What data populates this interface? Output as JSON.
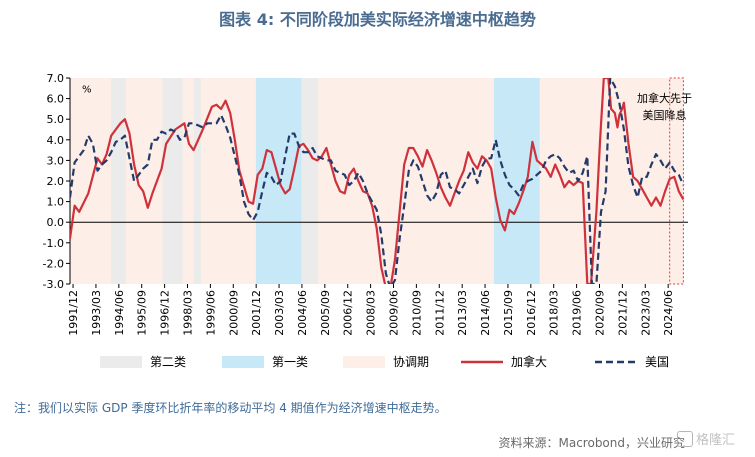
{
  "title": "图表 4:  不同阶段加美实际经济增速中枢趋势",
  "note": "注：我们以实际 GDP 季度环比折年率的移动平均 4 期值作为经济增速中枢走势。",
  "source": "资料来源：Macrobond，兴业研究",
  "watermark": "格隆汇",
  "colors": {
    "title": "#4a6c91",
    "canada": "#d0323c",
    "us": "#243b6a",
    "phase2": "#ebebeb",
    "phase1": "#c7e9f7",
    "coord": "#fdeee8",
    "annotation_border": "#e0403c"
  },
  "chart_data": {
    "type": "line",
    "y_unit_label": "%",
    "ylim": [
      -3.0,
      7.0
    ],
    "yticks": [
      "7.0",
      "6.0",
      "5.0",
      "4.0",
      "3.0",
      "2.0",
      "1.0",
      "0.0",
      "-1.0",
      "-2.0",
      "-3.0"
    ],
    "xlim": [
      1991.75,
      2025.5
    ],
    "xticks": [
      "1991/12",
      "1993/03",
      "1994/06",
      "1995/09",
      "1996/12",
      "1998/03",
      "1999/06",
      "2000/09",
      "2001/12",
      "2003/03",
      "2004/06",
      "2005/09",
      "2006/12",
      "2008/03",
      "2009/06",
      "2010/09",
      "2011/12",
      "2013/03",
      "2014/06",
      "2015/09",
      "2016/12",
      "2018/03",
      "2019/06",
      "2020/09",
      "2021/12",
      "2023/03",
      "2024/06"
    ],
    "legend": [
      {
        "key": "phase2",
        "label": "第二类",
        "kind": "swatch"
      },
      {
        "key": "phase1",
        "label": "第一类",
        "kind": "swatch"
      },
      {
        "key": "coord",
        "label": "协调期",
        "kind": "swatch"
      },
      {
        "key": "canada",
        "label": "加拿大",
        "kind": "line"
      },
      {
        "key": "us",
        "label": "美国",
        "kind": "dash"
      }
    ],
    "annotation": "加拿大先于美国降息",
    "annotation_range": [
      2024.5,
      2025.25
    ],
    "bands": [
      {
        "type": "coord",
        "start": 1991.75,
        "end": 2025.25
      },
      {
        "type": "phase2",
        "start": 1994.0,
        "end": 1994.8
      },
      {
        "type": "phase2",
        "start": 1996.8,
        "end": 1997.9
      },
      {
        "type": "phase2",
        "start": 1998.5,
        "end": 1998.9
      },
      {
        "type": "phase1",
        "start": 2001.9,
        "end": 2004.4
      },
      {
        "type": "phase2",
        "start": 2004.4,
        "end": 2005.3
      },
      {
        "type": "phase1",
        "start": 2014.9,
        "end": 2017.4
      }
    ],
    "series": [
      {
        "name": "加拿大",
        "key": "canada",
        "style": "solid",
        "points": [
          [
            1991.75,
            -0.8
          ],
          [
            1992.0,
            0.8
          ],
          [
            1992.25,
            0.5
          ],
          [
            1992.75,
            1.4
          ],
          [
            1993.25,
            3.1
          ],
          [
            1993.5,
            2.8
          ],
          [
            1993.75,
            3.3
          ],
          [
            1994.0,
            4.2
          ],
          [
            1994.5,
            4.8
          ],
          [
            1994.75,
            5.0
          ],
          [
            1995.0,
            4.3
          ],
          [
            1995.25,
            2.8
          ],
          [
            1995.5,
            1.8
          ],
          [
            1995.75,
            1.5
          ],
          [
            1996.0,
            0.7
          ],
          [
            1996.25,
            1.4
          ],
          [
            1996.75,
            2.6
          ],
          [
            1997.0,
            3.8
          ],
          [
            1997.5,
            4.5
          ],
          [
            1998.0,
            4.8
          ],
          [
            1998.25,
            3.8
          ],
          [
            1998.5,
            3.5
          ],
          [
            1998.75,
            4.0
          ],
          [
            1999.0,
            4.5
          ],
          [
            1999.5,
            5.6
          ],
          [
            1999.75,
            5.7
          ],
          [
            2000.0,
            5.5
          ],
          [
            2000.25,
            5.9
          ],
          [
            2000.5,
            5.3
          ],
          [
            2000.75,
            4.0
          ],
          [
            2001.0,
            2.5
          ],
          [
            2001.5,
            1.0
          ],
          [
            2001.75,
            0.9
          ],
          [
            2002.0,
            2.3
          ],
          [
            2002.25,
            2.6
          ],
          [
            2002.5,
            3.5
          ],
          [
            2002.75,
            3.4
          ],
          [
            2003.0,
            2.6
          ],
          [
            2003.25,
            1.8
          ],
          [
            2003.5,
            1.4
          ],
          [
            2003.75,
            1.6
          ],
          [
            2004.0,
            2.6
          ],
          [
            2004.25,
            3.7
          ],
          [
            2004.5,
            3.8
          ],
          [
            2004.75,
            3.5
          ],
          [
            2005.0,
            3.1
          ],
          [
            2005.25,
            3.0
          ],
          [
            2005.5,
            3.2
          ],
          [
            2005.75,
            3.6
          ],
          [
            2006.0,
            2.8
          ],
          [
            2006.25,
            2.0
          ],
          [
            2006.5,
            1.5
          ],
          [
            2006.75,
            1.4
          ],
          [
            2007.0,
            2.3
          ],
          [
            2007.25,
            2.6
          ],
          [
            2007.5,
            2.0
          ],
          [
            2007.75,
            1.5
          ],
          [
            2008.0,
            1.4
          ],
          [
            2008.25,
            0.8
          ],
          [
            2008.5,
            -0.3
          ],
          [
            2008.75,
            -2.2
          ],
          [
            2009.0,
            -3.2
          ],
          [
            2009.25,
            -3.2
          ],
          [
            2009.5,
            -1.8
          ],
          [
            2009.75,
            0.5
          ],
          [
            2010.0,
            2.8
          ],
          [
            2010.25,
            3.6
          ],
          [
            2010.5,
            3.6
          ],
          [
            2010.75,
            3.2
          ],
          [
            2011.0,
            2.7
          ],
          [
            2011.25,
            3.5
          ],
          [
            2011.5,
            3.0
          ],
          [
            2011.75,
            2.4
          ],
          [
            2012.0,
            1.7
          ],
          [
            2012.25,
            1.2
          ],
          [
            2012.5,
            0.8
          ],
          [
            2012.75,
            1.4
          ],
          [
            2013.0,
            2.0
          ],
          [
            2013.25,
            2.5
          ],
          [
            2013.5,
            3.4
          ],
          [
            2013.75,
            2.9
          ],
          [
            2014.0,
            2.6
          ],
          [
            2014.25,
            3.2
          ],
          [
            2014.5,
            3.0
          ],
          [
            2014.75,
            2.6
          ],
          [
            2015.0,
            1.2
          ],
          [
            2015.25,
            0.1
          ],
          [
            2015.5,
            -0.4
          ],
          [
            2015.75,
            0.6
          ],
          [
            2016.0,
            0.4
          ],
          [
            2016.25,
            0.9
          ],
          [
            2016.5,
            1.5
          ],
          [
            2016.75,
            2.2
          ],
          [
            2017.0,
            3.9
          ],
          [
            2017.25,
            3.0
          ],
          [
            2017.5,
            2.8
          ],
          [
            2017.75,
            2.6
          ],
          [
            2018.0,
            2.2
          ],
          [
            2018.25,
            2.8
          ],
          [
            2018.5,
            2.3
          ],
          [
            2018.75,
            1.7
          ],
          [
            2019.0,
            2.0
          ],
          [
            2019.25,
            1.8
          ],
          [
            2019.5,
            2.0
          ],
          [
            2019.75,
            1.9
          ],
          [
            2020.0,
            -3.0
          ],
          [
            2020.2,
            -3.0
          ],
          [
            2020.5,
            0.5
          ],
          [
            2020.7,
            4.0
          ],
          [
            2020.9,
            7.0
          ],
          [
            2021.15,
            7.0
          ],
          [
            2021.3,
            5.5
          ],
          [
            2021.5,
            5.3
          ],
          [
            2021.65,
            4.6
          ],
          [
            2021.75,
            5.2
          ],
          [
            2021.9,
            5.5
          ],
          [
            2022.0,
            5.8
          ],
          [
            2022.25,
            3.8
          ],
          [
            2022.5,
            2.2
          ],
          [
            2022.75,
            2.0
          ],
          [
            2023.0,
            1.6
          ],
          [
            2023.25,
            1.2
          ],
          [
            2023.5,
            0.8
          ],
          [
            2023.75,
            1.2
          ],
          [
            2024.0,
            0.8
          ],
          [
            2024.25,
            1.5
          ],
          [
            2024.5,
            2.1
          ],
          [
            2024.75,
            2.2
          ],
          [
            2025.0,
            1.5
          ],
          [
            2025.25,
            1.1
          ]
        ]
      },
      {
        "name": "美国",
        "key": "us",
        "style": "dashed",
        "points": [
          [
            1991.75,
            1.2
          ],
          [
            1992.0,
            2.9
          ],
          [
            1992.25,
            3.2
          ],
          [
            1992.5,
            3.5
          ],
          [
            1992.75,
            4.2
          ],
          [
            1993.0,
            3.8
          ],
          [
            1993.25,
            2.5
          ],
          [
            1993.5,
            2.8
          ],
          [
            1993.75,
            3.0
          ],
          [
            1994.0,
            3.4
          ],
          [
            1994.25,
            3.9
          ],
          [
            1994.5,
            4.0
          ],
          [
            1994.75,
            4.2
          ],
          [
            1995.0,
            3.1
          ],
          [
            1995.25,
            2.0
          ],
          [
            1995.5,
            2.3
          ],
          [
            1995.75,
            2.6
          ],
          [
            1996.0,
            2.8
          ],
          [
            1996.25,
            4.0
          ],
          [
            1996.5,
            4.0
          ],
          [
            1996.75,
            4.4
          ],
          [
            1997.0,
            4.3
          ],
          [
            1997.25,
            4.5
          ],
          [
            1997.5,
            4.4
          ],
          [
            1997.75,
            4.0
          ],
          [
            1998.0,
            4.1
          ],
          [
            1998.25,
            4.8
          ],
          [
            1998.5,
            4.8
          ],
          [
            1998.75,
            4.7
          ],
          [
            1999.0,
            4.6
          ],
          [
            1999.25,
            4.8
          ],
          [
            1999.5,
            4.8
          ],
          [
            1999.75,
            4.8
          ],
          [
            2000.0,
            5.2
          ],
          [
            2000.25,
            4.7
          ],
          [
            2000.5,
            4.1
          ],
          [
            2000.75,
            3.2
          ],
          [
            2001.0,
            2.3
          ],
          [
            2001.25,
            1.0
          ],
          [
            2001.5,
            0.4
          ],
          [
            2001.75,
            0.1
          ],
          [
            2002.0,
            0.5
          ],
          [
            2002.25,
            1.5
          ],
          [
            2002.5,
            2.4
          ],
          [
            2002.75,
            2.2
          ],
          [
            2003.0,
            1.8
          ],
          [
            2003.25,
            2.0
          ],
          [
            2003.5,
            3.2
          ],
          [
            2003.75,
            4.3
          ],
          [
            2004.0,
            4.3
          ],
          [
            2004.25,
            3.7
          ],
          [
            2004.5,
            3.4
          ],
          [
            2004.75,
            3.4
          ],
          [
            2005.0,
            3.6
          ],
          [
            2005.25,
            3.2
          ],
          [
            2005.5,
            3.1
          ],
          [
            2005.75,
            3.0
          ],
          [
            2006.0,
            3.0
          ],
          [
            2006.25,
            2.5
          ],
          [
            2006.5,
            2.4
          ],
          [
            2006.75,
            2.3
          ],
          [
            2007.0,
            1.8
          ],
          [
            2007.25,
            2.0
          ],
          [
            2007.5,
            2.4
          ],
          [
            2007.75,
            2.0
          ],
          [
            2008.0,
            1.4
          ],
          [
            2008.25,
            1.0
          ],
          [
            2008.5,
            0.6
          ],
          [
            2008.75,
            -0.6
          ],
          [
            2009.0,
            -2.5
          ],
          [
            2009.25,
            -3.2
          ],
          [
            2009.5,
            -2.8
          ],
          [
            2009.75,
            -0.8
          ],
          [
            2010.0,
            0.8
          ],
          [
            2010.25,
            2.5
          ],
          [
            2010.5,
            3.0
          ],
          [
            2010.75,
            2.7
          ],
          [
            2011.0,
            2.0
          ],
          [
            2011.25,
            1.3
          ],
          [
            2011.5,
            1.0
          ],
          [
            2011.75,
            1.4
          ],
          [
            2012.0,
            2.3
          ],
          [
            2012.25,
            2.5
          ],
          [
            2012.5,
            1.7
          ],
          [
            2012.75,
            1.6
          ],
          [
            2013.0,
            1.4
          ],
          [
            2013.25,
            1.8
          ],
          [
            2013.5,
            2.2
          ],
          [
            2013.75,
            2.6
          ],
          [
            2014.0,
            1.9
          ],
          [
            2014.25,
            2.7
          ],
          [
            2014.5,
            3.1
          ],
          [
            2014.75,
            3.1
          ],
          [
            2015.0,
            4.0
          ],
          [
            2015.25,
            3.0
          ],
          [
            2015.5,
            2.3
          ],
          [
            2015.75,
            1.8
          ],
          [
            2016.0,
            1.6
          ],
          [
            2016.25,
            1.3
          ],
          [
            2016.5,
            1.8
          ],
          [
            2016.75,
            2.0
          ],
          [
            2017.0,
            2.1
          ],
          [
            2017.25,
            2.3
          ],
          [
            2017.5,
            2.5
          ],
          [
            2017.75,
            3.0
          ],
          [
            2018.0,
            3.2
          ],
          [
            2018.25,
            3.3
          ],
          [
            2018.5,
            3.1
          ],
          [
            2018.75,
            2.7
          ],
          [
            2019.0,
            2.4
          ],
          [
            2019.25,
            2.5
          ],
          [
            2019.5,
            2.0
          ],
          [
            2019.75,
            2.4
          ],
          [
            2020.0,
            3.2
          ],
          [
            2020.25,
            -3.0
          ],
          [
            2020.5,
            -3.0
          ],
          [
            2020.75,
            0.5
          ],
          [
            2021.0,
            1.5
          ],
          [
            2021.25,
            7.0
          ],
          [
            2021.5,
            6.6
          ],
          [
            2021.75,
            5.8
          ],
          [
            2022.0,
            4.5
          ],
          [
            2022.25,
            2.7
          ],
          [
            2022.5,
            1.8
          ],
          [
            2022.75,
            1.2
          ],
          [
            2023.0,
            2.2
          ],
          [
            2023.25,
            2.2
          ],
          [
            2023.5,
            2.8
          ],
          [
            2023.75,
            3.3
          ],
          [
            2024.0,
            3.0
          ],
          [
            2024.25,
            2.6
          ],
          [
            2024.5,
            2.9
          ],
          [
            2024.75,
            2.5
          ],
          [
            2025.0,
            2.3
          ],
          [
            2025.25,
            1.8
          ]
        ]
      }
    ]
  }
}
